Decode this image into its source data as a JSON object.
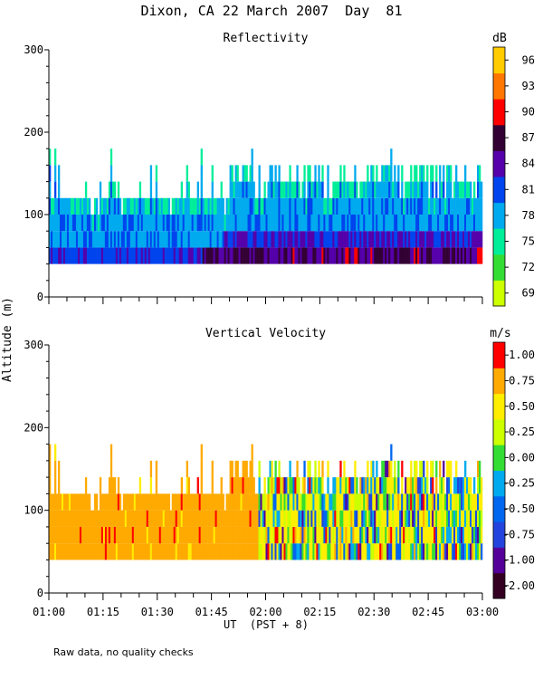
{
  "page_title": "Dixon, CA 22 March 2007  Day  81",
  "footer_note": "Raw data, no quality checks",
  "chart_data": [
    {
      "type": "heatmap",
      "title": "Reflectivity",
      "ylabel": "Altitude (m)",
      "xlabel": "UT  (PST + 8)",
      "x_range": [
        "01:00",
        "03:00"
      ],
      "ylim": [
        0,
        300
      ],
      "y_ticks": [
        0,
        100,
        200,
        300
      ],
      "x_tick_labels": [
        "01:00",
        "01:15",
        "01:30",
        "01:45",
        "02:00",
        "02:15",
        "02:30",
        "02:45",
        "03:00"
      ],
      "colorbar": {
        "unit": "dB",
        "tick_labels": [
          "69",
          "72",
          "75",
          "78",
          "81",
          "84",
          "87",
          "90",
          "93",
          "96"
        ],
        "colors": [
          "#ccff00",
          "#33dd33",
          "#00ee99",
          "#00aaee",
          "#0044ee",
          "#5500aa",
          "#330033",
          "#ff0000",
          "#ff7700",
          "#ffcc00"
        ]
      },
      "data_summary": {
        "echo_base_m": 40,
        "echo_top_m": [
          120,
          140,
          160,
          180
        ],
        "altitude_bin_m": 20,
        "typical_dB_low": [
          84,
          87
        ],
        "typical_dB_mid": [
          78,
          81
        ],
        "typical_dB_top": [
          75,
          78
        ]
      }
    },
    {
      "type": "heatmap",
      "title": "Vertical Velocity",
      "ylabel": "Altitude (m)",
      "xlabel": "UT  (PST + 8)",
      "x_range": [
        "01:00",
        "03:00"
      ],
      "ylim": [
        0,
        300
      ],
      "y_ticks": [
        0,
        100,
        200,
        300
      ],
      "x_tick_labels": [
        "01:00",
        "01:15",
        "01:30",
        "01:45",
        "02:00",
        "02:15",
        "02:30",
        "02:45",
        "03:00"
      ],
      "colorbar": {
        "unit": "m/s",
        "tick_labels": [
          "-2.00",
          "-1.00",
          "-0.75",
          "-0.50",
          "-0.25",
          "0.00",
          "0.25",
          "0.50",
          "0.75",
          "1.00"
        ],
        "colors": [
          "#330022",
          "#550099",
          "#2244dd",
          "#0066ee",
          "#00aaee",
          "#33dd33",
          "#ccff00",
          "#ffee00",
          "#ffaa00",
          "#ff0000"
        ]
      },
      "data_summary": {
        "echo_base_m": 40,
        "echo_top_m": [
          120,
          140,
          160,
          180
        ],
        "altitude_bin_m": 20,
        "dominant_velocity_ms": 0.5
      }
    }
  ]
}
